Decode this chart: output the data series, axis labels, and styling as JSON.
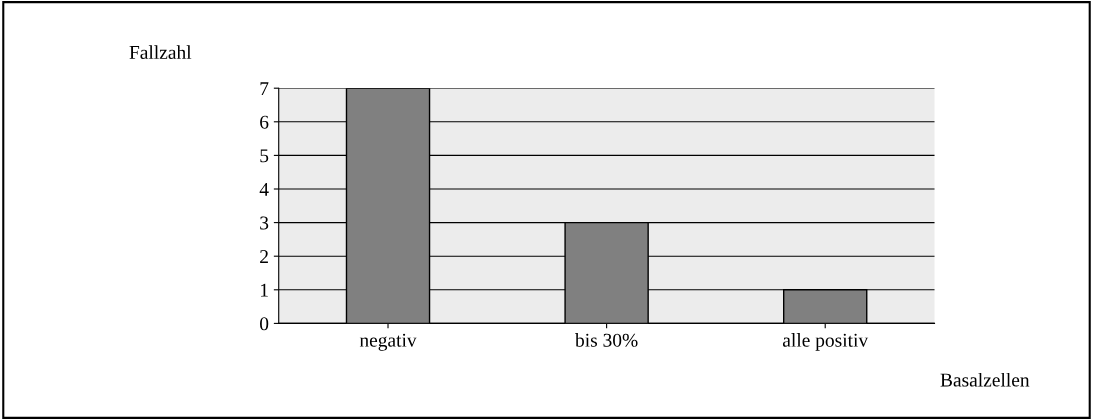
{
  "chart_data": {
    "type": "bar",
    "ylabel": "Fallzahl",
    "xlabel": "Basalzellen",
    "categories": [
      "negativ",
      "bis 30%",
      "alle positiv"
    ],
    "values": [
      7,
      3,
      1
    ],
    "color": "#808080",
    "ylim": [
      0,
      7
    ],
    "yticks": [
      0,
      1,
      2,
      3,
      4,
      5,
      6,
      7
    ],
    "grid": "y"
  }
}
